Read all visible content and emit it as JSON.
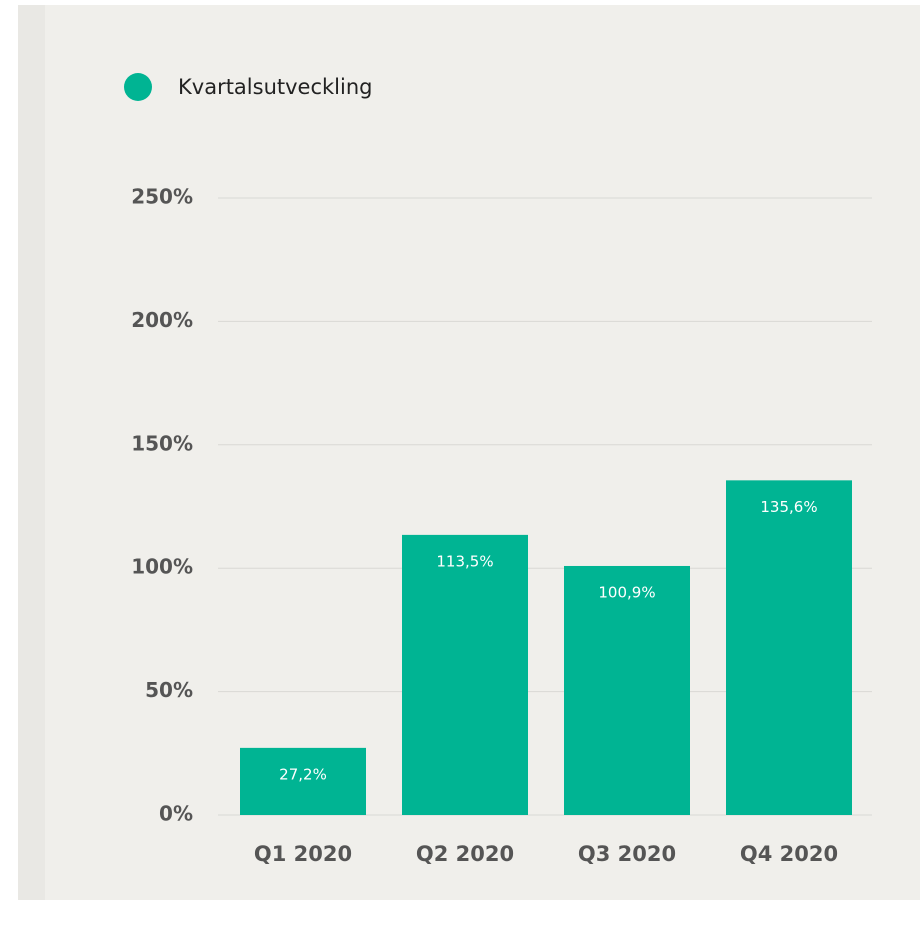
{
  "chart_data": {
    "type": "bar",
    "categories": [
      "Q1 2020",
      "Q2 2020",
      "Q3 2020",
      "Q4 2020"
    ],
    "series": [
      {
        "name": "Kvartalsutveckling",
        "color": "#00b493",
        "values": [
          27.2,
          113.5,
          100.9,
          135.6
        ],
        "value_labels": [
          "27,2%",
          "113,5%",
          "100,9%",
          "135,6%"
        ]
      }
    ],
    "ylim": [
      0,
      250
    ],
    "yticks": [
      {
        "value": 0,
        "label": "0%"
      },
      {
        "value": 50,
        "label": "50%"
      },
      {
        "value": 100,
        "label": "100%"
      },
      {
        "value": 150,
        "label": "150%"
      },
      {
        "value": 200,
        "label": "200%"
      },
      {
        "value": 250,
        "label": "250%"
      }
    ],
    "grid": true,
    "legend": "top-left"
  }
}
